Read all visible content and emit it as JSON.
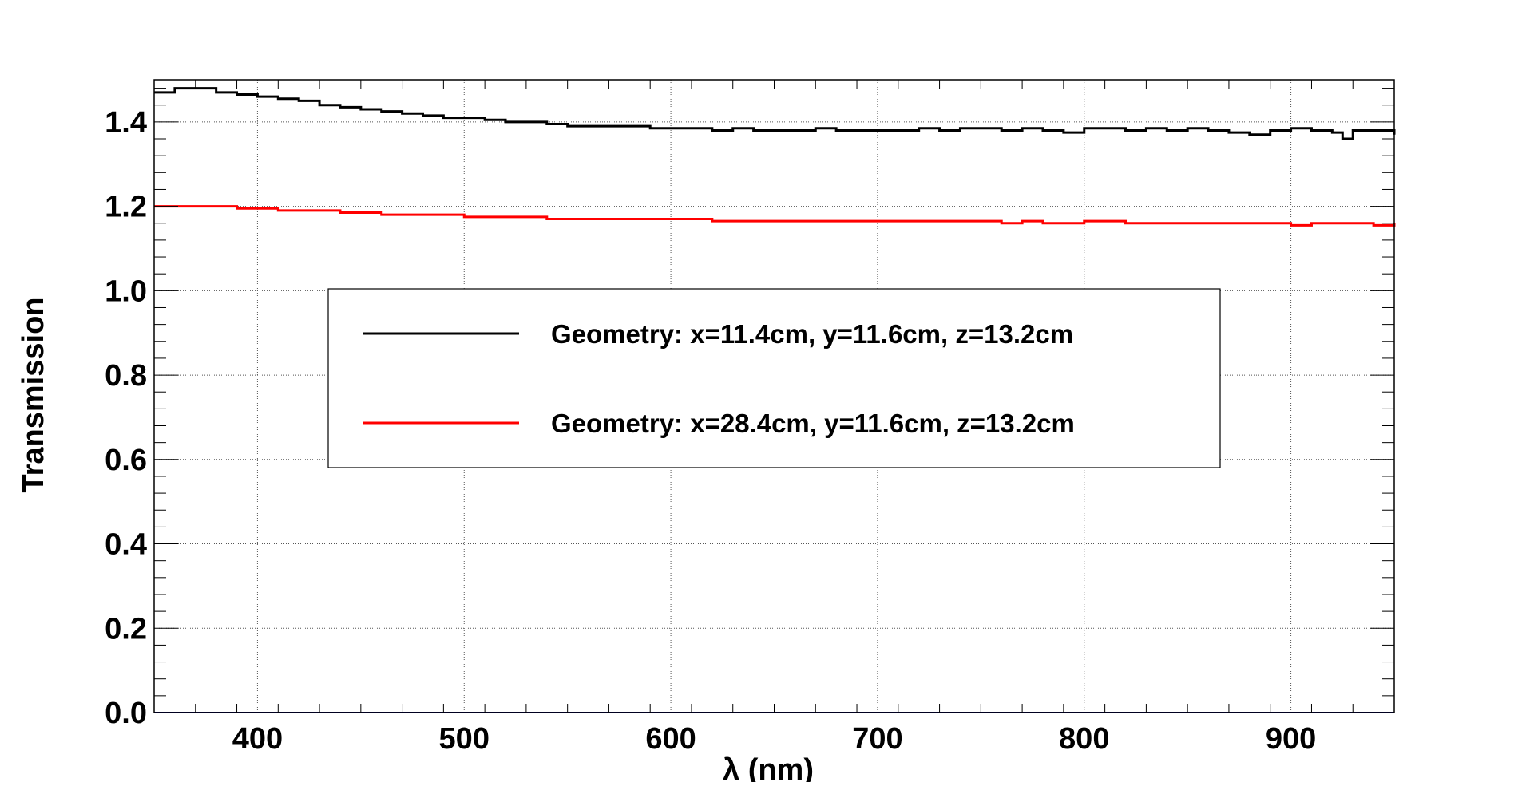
{
  "chart_data": {
    "type": "line",
    "title": "",
    "xlabel": "λ (nm)",
    "ylabel": "Transmission",
    "xlim": [
      350,
      950
    ],
    "ylim": [
      0.0,
      1.5
    ],
    "x_ticks": [
      400,
      500,
      600,
      700,
      800,
      900
    ],
    "y_ticks": [
      0.0,
      0.2,
      0.4,
      0.6,
      0.8,
      1.0,
      1.2,
      1.4
    ],
    "y_tick_labels": [
      "0.0",
      "0.2",
      "0.4",
      "0.6",
      "0.8",
      "1.0",
      "1.2",
      "1.4"
    ],
    "grid": true,
    "legend_position": "center",
    "series": [
      {
        "name": "Geometry: x=11.4cm, y=11.6cm, z=13.2cm",
        "color": "#000000",
        "x": [
          350,
          360,
          370,
          380,
          390,
          400,
          410,
          420,
          430,
          440,
          450,
          460,
          470,
          480,
          490,
          500,
          510,
          520,
          530,
          540,
          550,
          560,
          570,
          580,
          590,
          600,
          610,
          620,
          630,
          640,
          650,
          660,
          670,
          680,
          690,
          700,
          710,
          720,
          730,
          740,
          750,
          760,
          770,
          780,
          790,
          800,
          810,
          820,
          830,
          840,
          850,
          860,
          870,
          880,
          890,
          900,
          910,
          920,
          925,
          930,
          940,
          950
        ],
        "y": [
          1.47,
          1.48,
          1.48,
          1.47,
          1.465,
          1.46,
          1.455,
          1.45,
          1.44,
          1.435,
          1.43,
          1.425,
          1.42,
          1.415,
          1.41,
          1.41,
          1.405,
          1.4,
          1.4,
          1.395,
          1.39,
          1.39,
          1.39,
          1.39,
          1.385,
          1.385,
          1.385,
          1.38,
          1.385,
          1.38,
          1.38,
          1.38,
          1.385,
          1.38,
          1.38,
          1.38,
          1.38,
          1.385,
          1.38,
          1.385,
          1.385,
          1.38,
          1.385,
          1.38,
          1.375,
          1.385,
          1.385,
          1.38,
          1.385,
          1.38,
          1.385,
          1.38,
          1.375,
          1.37,
          1.38,
          1.385,
          1.38,
          1.375,
          1.36,
          1.38,
          1.38,
          1.37
        ]
      },
      {
        "name": "Geometry: x=28.4cm, y=11.6cm, z=13.2cm",
        "color": "#ff0000",
        "x": [
          350,
          360,
          370,
          380,
          390,
          400,
          410,
          420,
          430,
          440,
          450,
          460,
          470,
          480,
          490,
          500,
          510,
          520,
          530,
          540,
          550,
          560,
          570,
          580,
          590,
          600,
          610,
          620,
          630,
          640,
          650,
          660,
          670,
          680,
          690,
          700,
          710,
          720,
          730,
          740,
          750,
          760,
          770,
          780,
          790,
          800,
          810,
          820,
          830,
          840,
          850,
          860,
          870,
          880,
          890,
          900,
          910,
          920,
          930,
          940,
          950
        ],
        "y": [
          1.2,
          1.2,
          1.2,
          1.2,
          1.195,
          1.195,
          1.19,
          1.19,
          1.19,
          1.185,
          1.185,
          1.18,
          1.18,
          1.18,
          1.18,
          1.175,
          1.175,
          1.175,
          1.175,
          1.17,
          1.17,
          1.17,
          1.17,
          1.17,
          1.17,
          1.17,
          1.17,
          1.165,
          1.165,
          1.165,
          1.165,
          1.165,
          1.165,
          1.165,
          1.165,
          1.165,
          1.165,
          1.165,
          1.165,
          1.165,
          1.165,
          1.16,
          1.165,
          1.16,
          1.16,
          1.165,
          1.165,
          1.16,
          1.16,
          1.16,
          1.16,
          1.16,
          1.16,
          1.16,
          1.16,
          1.155,
          1.16,
          1.16,
          1.16,
          1.155,
          1.16
        ]
      }
    ]
  }
}
